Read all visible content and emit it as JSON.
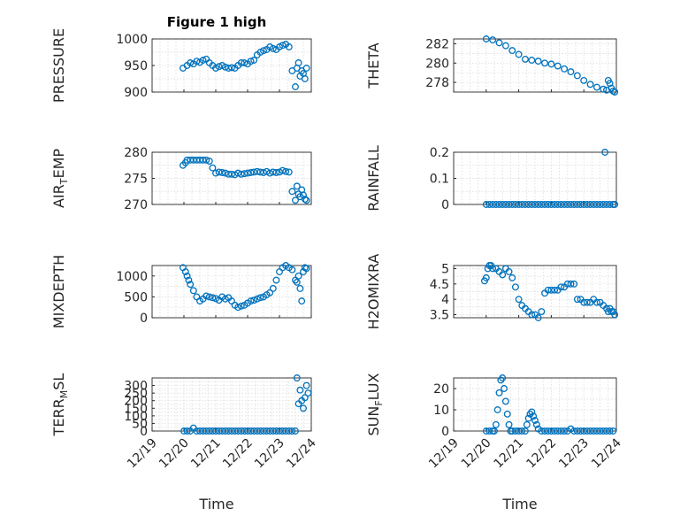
{
  "figure_title": "Figure 1 high",
  "x_ticks": [
    "12/19",
    "12/20",
    "12/21",
    "12/22",
    "12/23",
    "12/24"
  ],
  "x_label": "Time",
  "marker_color": "#0072BD",
  "chart_data": [
    {
      "type": "scatter",
      "name": "pressure",
      "ylabel": "PRESSURE",
      "ylim": [
        900,
        1000
      ],
      "yticks": [
        "900",
        "950",
        "1000"
      ],
      "ytick_values": [
        900,
        950,
        1000
      ],
      "xlim": [
        0,
        5
      ],
      "series": [
        {
          "name": "PRESSURE",
          "x": [
            0.97,
            1.1,
            1.2,
            1.3,
            1.4,
            1.5,
            1.6,
            1.7,
            1.8,
            1.9,
            2.0,
            2.1,
            2.2,
            2.3,
            2.4,
            2.5,
            2.6,
            2.7,
            2.8,
            2.9,
            3.0,
            3.1,
            3.2,
            3.3,
            3.4,
            3.5,
            3.6,
            3.7,
            3.8,
            3.9,
            4.0,
            4.1,
            4.2,
            4.3,
            4.4,
            4.5,
            4.55,
            4.6,
            4.65,
            4.7,
            4.75,
            4.8,
            4.85
          ],
          "values": [
            945,
            950,
            955,
            953,
            958,
            956,
            960,
            962,
            955,
            950,
            945,
            948,
            950,
            947,
            945,
            946,
            945,
            950,
            955,
            955,
            953,
            958,
            960,
            970,
            975,
            978,
            980,
            985,
            982,
            980,
            985,
            988,
            990,
            985,
            940,
            910,
            945,
            955,
            930,
            940,
            935,
            925,
            945
          ]
        }
      ]
    },
    {
      "type": "scatter",
      "name": "theta",
      "ylabel": "THETA",
      "ylim": [
        277,
        282.5
      ],
      "yticks": [
        "278",
        "280",
        "282"
      ],
      "ytick_values": [
        278,
        280,
        282
      ],
      "xlim": [
        0,
        5
      ],
      "series": [
        {
          "name": "THETA",
          "x": [
            1.0,
            1.2,
            1.4,
            1.6,
            1.8,
            2.0,
            2.2,
            2.4,
            2.6,
            2.8,
            3.0,
            3.2,
            3.4,
            3.6,
            3.8,
            4.0,
            4.2,
            4.4,
            4.6,
            4.7,
            4.75,
            4.8,
            4.85,
            4.9,
            4.95
          ],
          "values": [
            282.5,
            282.4,
            282.1,
            281.8,
            281.3,
            280.9,
            280.4,
            280.3,
            280.2,
            280.0,
            279.9,
            279.7,
            279.4,
            279.1,
            278.7,
            278.2,
            277.8,
            277.5,
            277.3,
            277.2,
            278.2,
            277.9,
            277.4,
            277.1,
            277.0
          ]
        }
      ]
    },
    {
      "type": "scatter",
      "name": "air_temp",
      "ylabel": "AIR_TEMP",
      "ylim": [
        270,
        280
      ],
      "yticks": [
        "270",
        "275",
        "280"
      ],
      "ytick_values": [
        270,
        275,
        280
      ],
      "xlim": [
        0,
        5
      ],
      "series": [
        {
          "name": "AIR_TEMP",
          "x": [
            0.97,
            1.05,
            1.1,
            1.2,
            1.3,
            1.4,
            1.5,
            1.6,
            1.7,
            1.8,
            1.9,
            2.0,
            2.1,
            2.2,
            2.3,
            2.4,
            2.5,
            2.6,
            2.7,
            2.8,
            2.9,
            3.0,
            3.1,
            3.2,
            3.3,
            3.4,
            3.5,
            3.6,
            3.7,
            3.8,
            3.9,
            4.0,
            4.1,
            4.2,
            4.3,
            4.4,
            4.5,
            4.55,
            4.6,
            4.65,
            4.7,
            4.75,
            4.8,
            4.85
          ],
          "values": [
            277.5,
            278,
            278.5,
            278.5,
            278.5,
            278.5,
            278.5,
            278.5,
            278.5,
            278.3,
            277,
            276,
            276.2,
            276.1,
            276,
            275.8,
            275.8,
            275.7,
            276,
            275.8,
            275.9,
            276,
            276.1,
            276.2,
            276.3,
            276.2,
            276.1,
            276.3,
            276,
            276.2,
            276.1,
            276.2,
            276.5,
            276.3,
            276.2,
            272.5,
            270.8,
            273.5,
            272,
            271.5,
            272.8,
            271.8,
            271,
            270.8
          ]
        }
      ]
    },
    {
      "type": "scatter",
      "name": "rainfall",
      "ylabel": "RAINFALL",
      "ylim": [
        0,
        0.2
      ],
      "yticks": [
        "0",
        "0.1",
        "0.2"
      ],
      "ytick_values": [
        0,
        0.1,
        0.2
      ],
      "xlim": [
        0,
        5
      ],
      "series": [
        {
          "name": "RAINFALL",
          "x": [
            1.0,
            1.1,
            1.2,
            1.3,
            1.4,
            1.5,
            1.6,
            1.7,
            1.8,
            1.9,
            2.0,
            2.1,
            2.2,
            2.3,
            2.4,
            2.5,
            2.6,
            2.7,
            2.8,
            2.9,
            3.0,
            3.1,
            3.2,
            3.3,
            3.4,
            3.5,
            3.6,
            3.7,
            3.8,
            3.9,
            4.0,
            4.1,
            4.2,
            4.3,
            4.4,
            4.5,
            4.6,
            4.65,
            4.7,
            4.8,
            4.9,
            4.95
          ],
          "values": [
            0,
            0,
            0,
            0,
            0,
            0,
            0,
            0,
            0,
            0,
            0,
            0,
            0,
            0,
            0,
            0,
            0,
            0,
            0,
            0,
            0,
            0,
            0,
            0,
            0,
            0,
            0,
            0,
            0,
            0,
            0,
            0,
            0,
            0,
            0,
            0,
            0,
            0.2,
            0,
            0,
            0,
            0
          ]
        }
      ]
    },
    {
      "type": "scatter",
      "name": "mixdepth",
      "ylabel": "MIXDEPTH",
      "ylim": [
        0,
        1250
      ],
      "yticks": [
        "0",
        "500",
        "1000"
      ],
      "ytick_values": [
        0,
        500,
        1000
      ],
      "xlim": [
        0,
        5
      ],
      "series": [
        {
          "name": "MIXDEPTH",
          "x": [
            0.97,
            1.05,
            1.1,
            1.15,
            1.2,
            1.3,
            1.4,
            1.5,
            1.6,
            1.7,
            1.8,
            1.9,
            2.0,
            2.1,
            2.2,
            2.3,
            2.4,
            2.5,
            2.6,
            2.7,
            2.8,
            2.9,
            3.0,
            3.1,
            3.2,
            3.3,
            3.4,
            3.5,
            3.6,
            3.7,
            3.8,
            3.9,
            4.0,
            4.1,
            4.2,
            4.3,
            4.4,
            4.5,
            4.55,
            4.6,
            4.65,
            4.7,
            4.75,
            4.8,
            4.85
          ],
          "values": [
            1200,
            1100,
            1000,
            900,
            800,
            650,
            500,
            400,
            450,
            520,
            500,
            480,
            460,
            420,
            500,
            450,
            480,
            400,
            300,
            250,
            280,
            300,
            350,
            400,
            420,
            450,
            480,
            500,
            550,
            600,
            700,
            900,
            1100,
            1200,
            1250,
            1200,
            1150,
            900,
            850,
            1000,
            700,
            400,
            1100,
            1200,
            1180
          ]
        }
      ]
    },
    {
      "type": "scatter",
      "name": "h2omixra",
      "ylabel": "H2OMIXRA",
      "ylim": [
        3.4,
        5.1
      ],
      "yticks": [
        "3.5",
        "4",
        "4.5",
        "5"
      ],
      "ytick_values": [
        3.5,
        4,
        4.5,
        5
      ],
      "xlim": [
        0,
        5
      ],
      "series": [
        {
          "name": "H2OMIXRA",
          "x": [
            0.95,
            1.0,
            1.05,
            1.1,
            1.15,
            1.2,
            1.3,
            1.4,
            1.5,
            1.6,
            1.7,
            1.8,
            1.9,
            2.0,
            2.1,
            2.2,
            2.3,
            2.4,
            2.5,
            2.6,
            2.7,
            2.8,
            2.9,
            3.0,
            3.1,
            3.2,
            3.3,
            3.4,
            3.5,
            3.6,
            3.7,
            3.8,
            3.9,
            4.0,
            4.1,
            4.2,
            4.3,
            4.4,
            4.5,
            4.6,
            4.7,
            4.75,
            4.8,
            4.85,
            4.9,
            4.95
          ],
          "values": [
            4.6,
            4.7,
            5.0,
            5.1,
            5.1,
            5.0,
            5.0,
            4.9,
            4.8,
            5.0,
            4.9,
            4.7,
            4.4,
            4.0,
            3.8,
            3.7,
            3.6,
            3.5,
            3.5,
            3.4,
            3.6,
            4.2,
            4.3,
            4.3,
            4.3,
            4.3,
            4.4,
            4.4,
            4.5,
            4.5,
            4.5,
            4.0,
            4.0,
            3.9,
            3.9,
            3.9,
            4.0,
            3.9,
            3.9,
            3.8,
            3.7,
            3.6,
            3.7,
            3.6,
            3.6,
            3.5
          ]
        }
      ]
    },
    {
      "type": "scatter",
      "name": "terr_msl",
      "ylabel": "TERR_MSL",
      "ylim": [
        0,
        350
      ],
      "yticks": [
        "0",
        "50",
        "100",
        "150",
        "200",
        "250",
        "300"
      ],
      "ytick_values": [
        0,
        50,
        100,
        150,
        200,
        250,
        300
      ],
      "xlim": [
        0,
        5
      ],
      "series": [
        {
          "name": "TERR_MSL",
          "x": [
            1.0,
            1.1,
            1.2,
            1.3,
            1.4,
            1.5,
            1.6,
            1.7,
            1.8,
            1.9,
            2.0,
            2.1,
            2.2,
            2.3,
            2.4,
            2.5,
            2.6,
            2.7,
            2.8,
            2.9,
            3.0,
            3.1,
            3.2,
            3.3,
            3.4,
            3.5,
            3.6,
            3.7,
            3.8,
            3.9,
            4.0,
            4.1,
            4.2,
            4.3,
            4.4,
            4.5,
            4.55,
            4.6,
            4.65,
            4.7,
            4.75,
            4.8,
            4.85,
            4.9
          ],
          "values": [
            0,
            0,
            0,
            20,
            0,
            0,
            0,
            0,
            0,
            0,
            0,
            0,
            0,
            0,
            0,
            0,
            0,
            0,
            0,
            0,
            0,
            0,
            0,
            0,
            0,
            0,
            0,
            0,
            0,
            0,
            0,
            0,
            0,
            0,
            0,
            0,
            350,
            180,
            270,
            200,
            150,
            220,
            300,
            250
          ]
        }
      ]
    },
    {
      "type": "scatter",
      "name": "sun_flux",
      "ylabel": "SUN_FLUX",
      "ylim": [
        0,
        25
      ],
      "yticks": [
        "0",
        "10",
        "20"
      ],
      "ytick_values": [
        0,
        10,
        20
      ],
      "xlim": [
        0,
        5
      ],
      "series": [
        {
          "name": "SUN_FLUX",
          "x": [
            1.0,
            1.1,
            1.2,
            1.25,
            1.3,
            1.35,
            1.4,
            1.45,
            1.5,
            1.55,
            1.6,
            1.65,
            1.7,
            1.75,
            1.8,
            1.9,
            2.0,
            2.1,
            2.2,
            2.25,
            2.3,
            2.35,
            2.4,
            2.45,
            2.5,
            2.55,
            2.6,
            2.7,
            2.8,
            2.9,
            3.0,
            3.1,
            3.2,
            3.3,
            3.4,
            3.5,
            3.6,
            3.7,
            3.8,
            3.9,
            4.0,
            4.1,
            4.2,
            4.3,
            4.4,
            4.5,
            4.6,
            4.7,
            4.8,
            4.9
          ],
          "values": [
            0,
            0,
            0,
            0,
            3,
            10,
            18,
            24,
            25,
            20,
            14,
            8,
            3,
            0,
            0,
            0,
            0,
            0,
            0,
            3,
            6,
            8,
            9,
            7,
            5,
            3,
            1,
            0,
            0,
            0,
            0,
            0,
            0,
            0,
            0,
            0,
            1,
            0,
            0,
            0,
            0,
            0,
            0,
            0,
            0,
            0,
            0,
            0,
            0,
            0
          ]
        }
      ]
    }
  ]
}
